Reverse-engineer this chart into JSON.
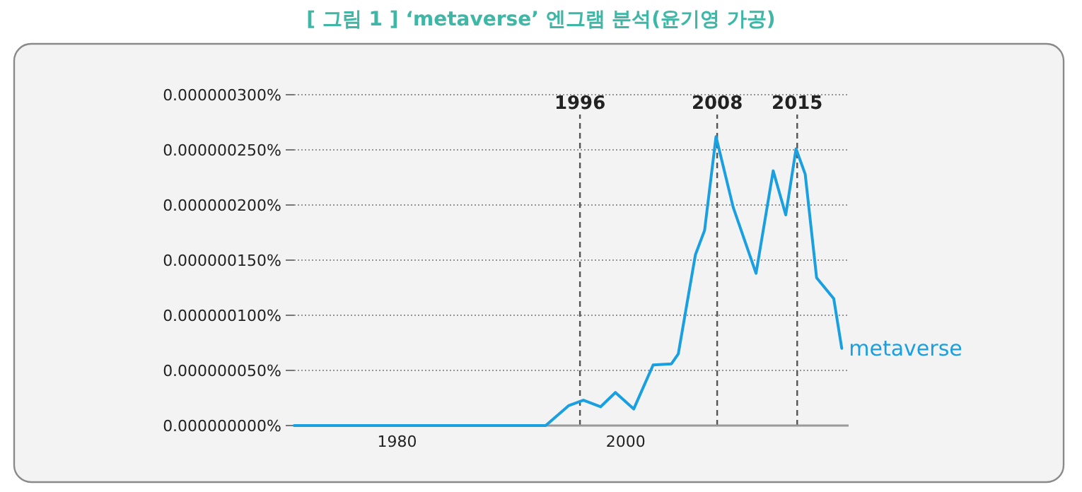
{
  "chart_data": {
    "type": "line",
    "title": "[ 그림 1 ] ‘metaverse’ 엔그램 분석(윤기영 가공)",
    "x": [
      1971,
      1993,
      1995,
      1996.3,
      1997.8,
      1999.1,
      2000.7,
      2002.4,
      2004.0,
      2004.6,
      2006.1,
      2006.9,
      2007.9,
      2009.4,
      2011.4,
      2012.9,
      2014.0,
      2014.9,
      2015.7,
      2016.7,
      2018.2,
      2018.9
    ],
    "series": [
      {
        "name": "metaverse",
        "color": "#1a9fe0",
        "values": [
          0,
          0,
          1.8e-08,
          2.3e-08,
          1.7e-08,
          3e-08,
          1.5e-08,
          5.5e-08,
          5.6e-08,
          6.5e-08,
          1.55e-07,
          1.77e-07,
          2.62e-07,
          1.98e-07,
          1.38e-07,
          2.31e-07,
          1.91e-07,
          2.51e-07,
          2.28e-07,
          1.34e-07,
          1.15e-07,
          7e-08
        ]
      }
    ],
    "xlim": [
      1971,
      2019.5
    ],
    "xticks": [
      1980,
      2000
    ],
    "ylim": [
      0,
      3e-07
    ],
    "yticks": [
      {
        "value": 0,
        "label": "0.000000000%"
      },
      {
        "value": 5e-08,
        "label": "0.000000050%"
      },
      {
        "value": 1e-07,
        "label": "0.000000100%"
      },
      {
        "value": 1.5e-07,
        "label": "0.000000150%"
      },
      {
        "value": 2e-07,
        "label": "0.000000200%"
      },
      {
        "value": 2.5e-07,
        "label": "0.000000250%"
      },
      {
        "value": 3e-07,
        "label": "0.000000300%"
      }
    ],
    "grid": "y",
    "legend": false,
    "marker": "none",
    "line_style": "solid",
    "ref_lines": [
      {
        "axis": "x",
        "value": 1996,
        "label": "1996",
        "line_style": "dashed",
        "color": "#555555"
      },
      {
        "axis": "x",
        "value": 2008,
        "label": "2008",
        "line_style": "dashed",
        "color": "#555555"
      },
      {
        "axis": "x",
        "value": 2015,
        "label": "2015",
        "line_style": "dashed",
        "color": "#555555"
      }
    ]
  }
}
